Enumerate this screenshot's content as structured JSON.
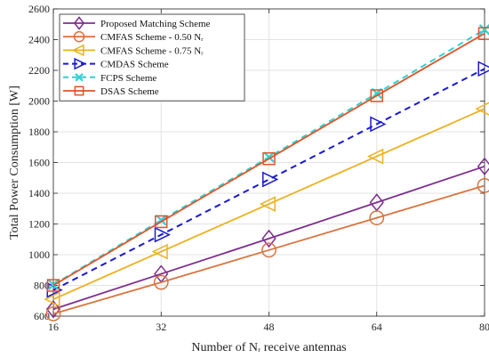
{
  "chart_data": {
    "type": "line",
    "title": "",
    "xlabel": "Number of Nᵣ receive antennas",
    "ylabel": "Total Power Consumption [W]",
    "x": [
      16,
      32,
      48,
      64,
      80
    ],
    "xticks": [
      "16",
      "32",
      "48",
      "64",
      "80"
    ],
    "xlim": [
      16,
      80
    ],
    "ylim": [
      600,
      2600
    ],
    "yticks": [
      600,
      800,
      1000,
      1200,
      1400,
      1600,
      1800,
      2000,
      2200,
      2400,
      2600
    ],
    "grid": true,
    "legend_position": "top-left",
    "series": [
      {
        "name": "Proposed Matching Scheme",
        "values": [
          645,
          875,
          1105,
          1340,
          1575
        ],
        "color": "#7E2F8E",
        "marker": "diamond",
        "dash": "solid"
      },
      {
        "name": "CMFAS Scheme - 0.50 Nᵣ",
        "values": [
          615,
          820,
          1030,
          1240,
          1450
        ],
        "color": "#D9743F",
        "marker": "circle",
        "dash": "solid"
      },
      {
        "name": "CMFAS Scheme - 0.75 Nᵣ",
        "values": [
          710,
          1020,
          1330,
          1640,
          1950
        ],
        "color": "#EDB120",
        "marker": "triangle-left",
        "dash": "solid"
      },
      {
        "name": "CMDAS Scheme",
        "values": [
          770,
          1130,
          1490,
          1850,
          2210
        ],
        "color": "#1A1AD0",
        "marker": "triangle-right",
        "dash": "dashed"
      },
      {
        "name": "FCPS Scheme",
        "values": [
          805,
          1225,
          1635,
          2050,
          2465
        ],
        "color": "#2ED3D3",
        "marker": "x",
        "dash": "dashed"
      },
      {
        "name": "DSAS Scheme",
        "values": [
          800,
          1215,
          1625,
          2035,
          2440
        ],
        "color": "#E0532A",
        "marker": "square",
        "dash": "solid"
      }
    ]
  }
}
